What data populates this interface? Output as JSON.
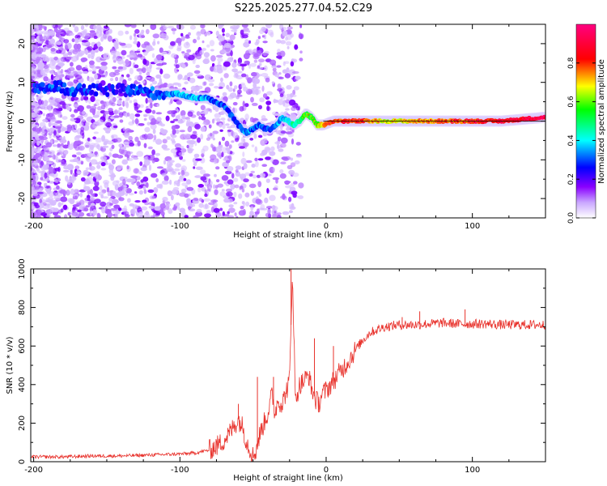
{
  "title": "S225.2025.277.04.52.C29",
  "colors": {
    "snr_line": "#e8302a",
    "ridge_stops": [
      "#8a00ff",
      "#0000ff",
      "#00ffff",
      "#00ff00",
      "#ffff00",
      "#ff0000",
      "#ff0080"
    ],
    "scatter": "#7f1fff"
  },
  "chart_data": [
    {
      "id": "spectrogram",
      "type": "heatmap",
      "xlabel": "Height of straight line (km)",
      "ylabel": "Frequency (Hz)",
      "xlim": [
        -202,
        150
      ],
      "ylim": [
        -25,
        25
      ],
      "xticks": [
        -200,
        -100,
        0,
        100
      ],
      "xtick_labels": [
        "-200",
        "-100",
        "0",
        "100"
      ],
      "yticks": [
        20,
        10,
        0,
        -10,
        -20
      ],
      "ytick_labels": [
        "20",
        "10",
        "0",
        "-10",
        "-20"
      ],
      "ridge": {
        "x": [
          -200,
          -185,
          -175,
          -160,
          -145,
          -130,
          -115,
          -100,
          -90,
          -82,
          -76,
          -70,
          -66,
          -62,
          -58,
          -54,
          -50,
          -46,
          -42,
          -38,
          -34,
          -30,
          -26,
          -22,
          -18,
          -14,
          -10,
          -6,
          -2,
          5,
          15,
          25,
          40,
          60,
          80,
          100,
          120,
          150
        ],
        "freq": [
          8,
          9,
          8,
          8,
          8,
          8,
          7,
          7,
          6,
          6,
          5,
          4,
          2,
          0,
          -2,
          -3,
          -2,
          -1,
          -2,
          -2,
          -1,
          1,
          0,
          -1,
          0,
          2,
          1,
          -1,
          -1,
          0,
          0,
          0,
          0,
          0,
          0,
          0,
          0,
          1
        ],
        "amplitude": [
          0.25,
          0.3,
          0.3,
          0.25,
          0.25,
          0.3,
          0.3,
          0.35,
          0.35,
          0.35,
          0.3,
          0.3,
          0.3,
          0.3,
          0.3,
          0.35,
          0.3,
          0.3,
          0.3,
          0.3,
          0.35,
          0.35,
          0.4,
          0.45,
          0.5,
          0.55,
          0.55,
          0.6,
          0.7,
          0.8,
          0.8,
          0.8,
          0.65,
          0.7,
          0.75,
          0.8,
          0.85,
          0.9
        ]
      }
    },
    {
      "id": "colorbar",
      "type": "colorbar",
      "label": "Normalized spectral amplitude",
      "ticks": [
        0.0,
        0.2,
        0.4,
        0.6,
        0.8
      ],
      "tick_labels": [
        "0.0",
        "0.2",
        "0.4",
        "0.6",
        "0.8"
      ],
      "range": [
        0,
        1
      ]
    },
    {
      "id": "snr",
      "type": "line",
      "xlabel": "Height of straight line (km)",
      "ylabel": "SNR (10 * v/v)",
      "xlim": [
        -202,
        150
      ],
      "ylim": [
        0,
        1000
      ],
      "xticks": [
        -200,
        -100,
        0,
        100
      ],
      "xtick_labels": [
        "-200",
        "-100",
        "0",
        "100"
      ],
      "yticks": [
        0,
        200,
        400,
        600,
        800,
        1000
      ],
      "ytick_labels": [
        "0",
        "200",
        "400",
        "600",
        "800",
        "1000"
      ],
      "x": [
        -202,
        -180,
        -160,
        -140,
        -120,
        -100,
        -90,
        -80,
        -75,
        -70,
        -65,
        -60,
        -57,
        -55,
        -52,
        -50,
        -48,
        -45,
        -40,
        -37,
        -35,
        -33,
        -30,
        -28,
        -25,
        -23,
        -22,
        -21,
        -20,
        -18,
        -15,
        -12,
        -10,
        -7,
        -5,
        -3,
        0,
        5,
        10,
        15,
        20,
        25,
        30,
        40,
        50,
        60,
        70,
        80,
        90,
        100,
        110,
        120,
        130,
        140,
        150
      ],
      "y": [
        25,
        25,
        30,
        30,
        35,
        40,
        45,
        60,
        80,
        110,
        160,
        220,
        180,
        120,
        60,
        30,
        60,
        150,
        250,
        350,
        250,
        320,
        300,
        350,
        420,
        1000,
        650,
        300,
        350,
        400,
        420,
        450,
        380,
        320,
        300,
        350,
        370,
        420,
        470,
        520,
        580,
        630,
        670,
        700,
        710,
        710,
        715,
        720,
        715,
        715,
        715,
        710,
        710,
        710,
        710
      ],
      "spikes": [
        {
          "x": -60,
          "y": 300
        },
        {
          "x": -47,
          "y": 440
        },
        {
          "x": -36,
          "y": 440
        },
        {
          "x": -24,
          "y": 1000
        },
        {
          "x": -8,
          "y": 640
        },
        {
          "x": 5,
          "y": 600
        },
        {
          "x": 52,
          "y": 750
        },
        {
          "x": 64,
          "y": 780
        },
        {
          "x": 95,
          "y": 790
        }
      ]
    }
  ]
}
